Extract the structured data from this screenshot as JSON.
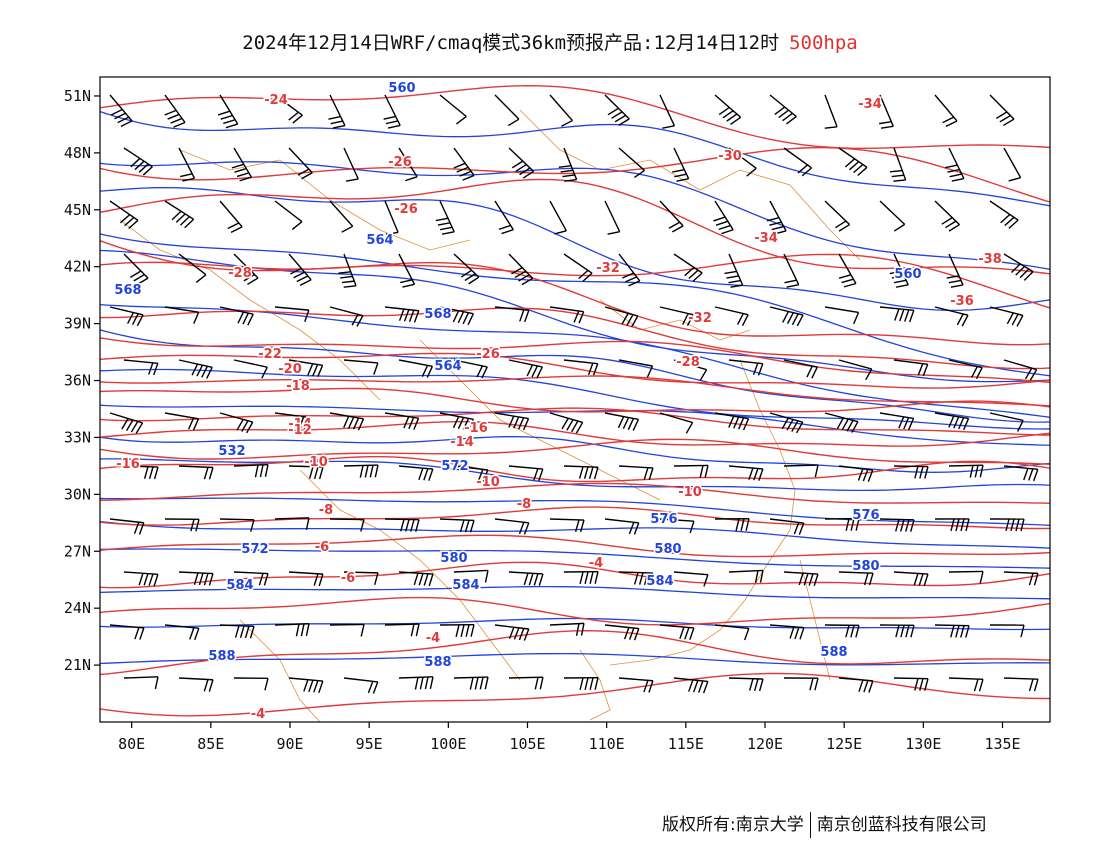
{
  "title": {
    "main": "2024年12月14日WRF/cmaq模式36km预报产品:12月14日12时",
    "level": "500hpa"
  },
  "map": {
    "lon_range": [
      78,
      138
    ],
    "lat_range": [
      18,
      52
    ],
    "lon_ticks": [
      "80E",
      "85E",
      "90E",
      "95E",
      "100E",
      "105E",
      "110E",
      "115E",
      "120E",
      "125E",
      "130E",
      "135E"
    ],
    "lat_ticks": [
      "51N",
      "48N",
      "45N",
      "42N",
      "39N",
      "36N",
      "33N",
      "30N",
      "27N",
      "24N",
      "21N"
    ],
    "colors": {
      "temperature_contour": "#e03a3a",
      "height_contour": "#2244dd",
      "boundaries": "#e09040",
      "wind_barb": "#000000"
    },
    "height_labels": [
      "560",
      "564",
      "568",
      "568",
      "564",
      "560",
      "532",
      "572",
      "576",
      "576",
      "572",
      "580",
      "580",
      "580",
      "584",
      "584",
      "584",
      "588",
      "588",
      "588"
    ],
    "temperature_labels": [
      "-24",
      "-26",
      "-26",
      "-28",
      "-30",
      "-34",
      "-34",
      "-32",
      "-32",
      "-38",
      "-36",
      "-28",
      "-26",
      "-22",
      "-20",
      "-18",
      "-16",
      "-14",
      "-12",
      "-10",
      "-8",
      "-6",
      "-4",
      "-4",
      "-16",
      "-10",
      "-6",
      "-8",
      "-14",
      "-10",
      "-4"
    ]
  },
  "footer": {
    "copyright": "版权所有:南京大学",
    "company": "南京创蓝科技有限公司"
  }
}
